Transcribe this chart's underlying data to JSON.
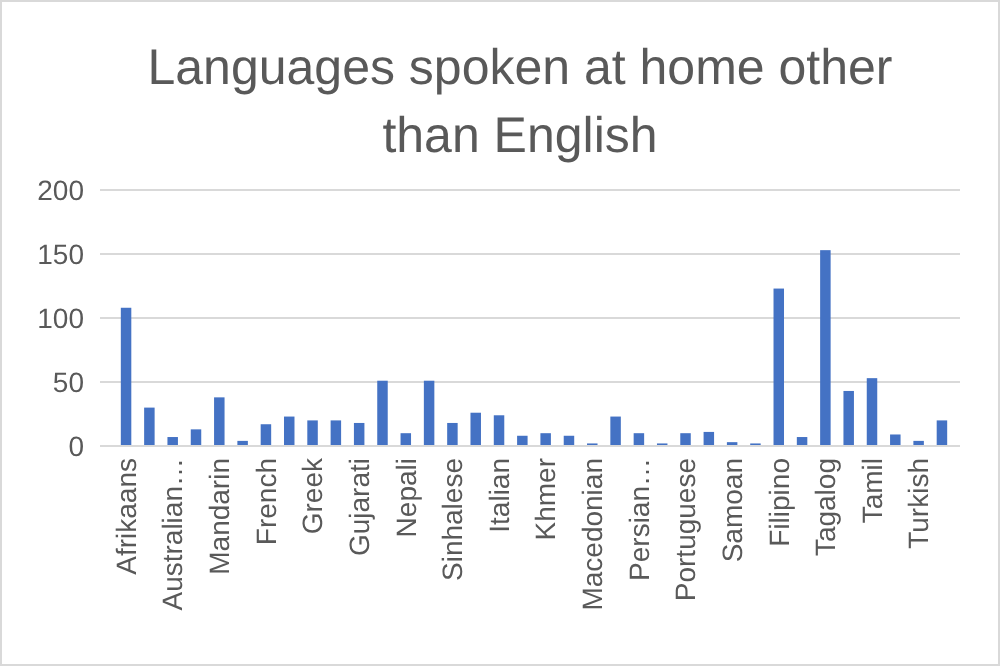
{
  "chart_data": {
    "type": "bar",
    "title": "Languages spoken at home other than English",
    "categories": [
      "Afrikaans",
      null,
      "Australian…",
      null,
      "Mandarin",
      null,
      "French",
      null,
      "Greek",
      null,
      "Gujarati",
      null,
      "Nepali",
      null,
      "Sinhalese",
      null,
      "Italian",
      null,
      "Khmer",
      null,
      "Macedonian",
      null,
      "Persian…",
      null,
      "Portuguese",
      null,
      "Samoan",
      null,
      "Filipino",
      null,
      "Tagalog",
      null,
      "Tamil",
      null,
      "Turkish",
      null
    ],
    "values": [
      108,
      30,
      7,
      13,
      38,
      4,
      17,
      23,
      20,
      20,
      18,
      51,
      10,
      51,
      18,
      26,
      24,
      8,
      10,
      8,
      2,
      23,
      10,
      2,
      10,
      11,
      3,
      2,
      123,
      7,
      153,
      43,
      53,
      9,
      4,
      20
    ],
    "color": "#4472c4",
    "ylim": [
      0,
      200
    ],
    "yticks": [
      0,
      50,
      100,
      150,
      200
    ],
    "grid": "y"
  }
}
